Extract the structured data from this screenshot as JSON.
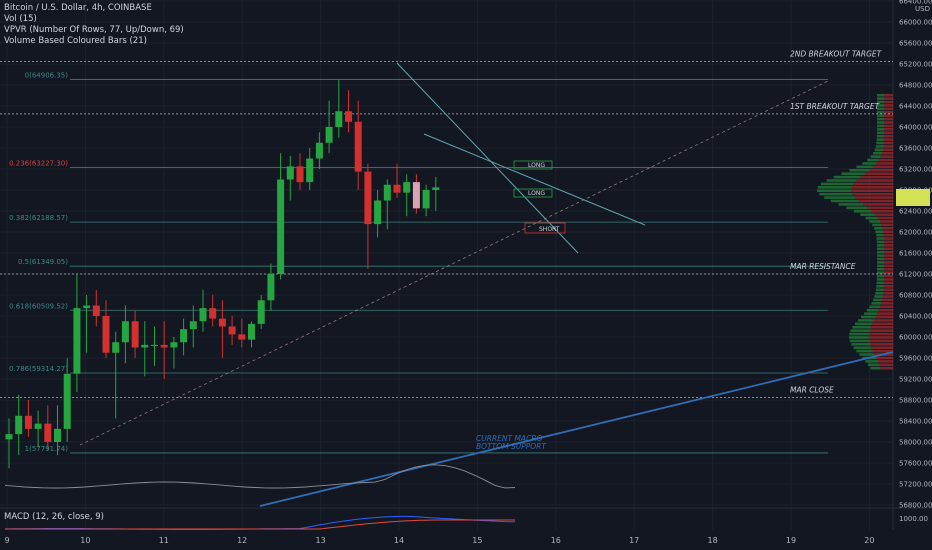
{
  "legend": {
    "symbol": "Bitcoin / U.S. Dollar, 4h, COINBASE",
    "vol": "Vol (15)",
    "vpvr": "VPVR (Number Of Rows, 77, Up/Down, 69)",
    "vbcb": "Volume Based Coloured Bars (21)",
    "macd": "MACD (12, 26, close, 9)"
  },
  "colors": {
    "background": "#131722",
    "up": "#26a641",
    "down": "#d3302f",
    "fib": "#3b8a86",
    "fib_red": "#d1473f",
    "trend_blue": "#2f6db5",
    "line_teal": "#5fa6ad",
    "dashed": "#b0b4bd",
    "price_tag": "#d4e157"
  },
  "chart_data": {
    "type": "candlestick",
    "currency": "USD",
    "y_axis": {
      "ylim": [
        56400,
        66500
      ],
      "tick_labels": [
        "66400.00",
        "66000.00",
        "65600.00",
        "65200.00",
        "64800.00",
        "64400.00",
        "64000.00",
        "63600.00",
        "63200.00",
        "62800.00",
        "62400.00",
        "62000.00",
        "61600.00",
        "61200.00",
        "60800.00",
        "60400.00",
        "60000.00",
        "59600.00",
        "59200.00",
        "58800.00",
        "58400.00",
        "58000.00",
        "57600.00",
        "57200.00",
        "56800.00"
      ],
      "macd_tick": "1000.00"
    },
    "x_axis": {
      "tick_labels": [
        "9",
        "10",
        "11",
        "12",
        "13",
        "14",
        "15",
        "16",
        "17",
        "18",
        "19",
        "20"
      ]
    },
    "candles": [
      {
        "o": 58050,
        "h": 58450,
        "l": 57500,
        "c": 58150
      },
      {
        "o": 58150,
        "h": 58900,
        "l": 57750,
        "c": 58500
      },
      {
        "o": 58500,
        "h": 58800,
        "l": 58100,
        "c": 58250
      },
      {
        "o": 58250,
        "h": 58600,
        "l": 57900,
        "c": 58350
      },
      {
        "o": 58350,
        "h": 58700,
        "l": 57850,
        "c": 58000
      },
      {
        "o": 58000,
        "h": 58700,
        "l": 57750,
        "c": 58250
      },
      {
        "o": 58250,
        "h": 59600,
        "l": 58000,
        "c": 59300
      },
      {
        "o": 59300,
        "h": 61200,
        "l": 58950,
        "c": 60550
      },
      {
        "o": 60550,
        "h": 60800,
        "l": 59700,
        "c": 60600
      },
      {
        "o": 60600,
        "h": 60900,
        "l": 60200,
        "c": 60400
      },
      {
        "o": 60400,
        "h": 60700,
        "l": 59600,
        "c": 59700
      },
      {
        "o": 59700,
        "h": 60100,
        "l": 58450,
        "c": 59900
      },
      {
        "o": 59900,
        "h": 60600,
        "l": 59500,
        "c": 60300
      },
      {
        "o": 60300,
        "h": 60500,
        "l": 59600,
        "c": 59800
      },
      {
        "o": 59800,
        "h": 60300,
        "l": 59250,
        "c": 59850
      },
      {
        "o": 59850,
        "h": 60200,
        "l": 59450,
        "c": 59850
      },
      {
        "o": 59850,
        "h": 60300,
        "l": 59200,
        "c": 59800
      },
      {
        "o": 59800,
        "h": 60000,
        "l": 59400,
        "c": 59900
      },
      {
        "o": 59900,
        "h": 60350,
        "l": 59650,
        "c": 60150
      },
      {
        "o": 60150,
        "h": 60600,
        "l": 59800,
        "c": 60300
      },
      {
        "o": 60300,
        "h": 60900,
        "l": 60100,
        "c": 60550
      },
      {
        "o": 60550,
        "h": 60800,
        "l": 60200,
        "c": 60350
      },
      {
        "o": 60350,
        "h": 60700,
        "l": 59600,
        "c": 60200
      },
      {
        "o": 60200,
        "h": 60400,
        "l": 59850,
        "c": 60050
      },
      {
        "o": 60050,
        "h": 60350,
        "l": 59800,
        "c": 59950
      },
      {
        "o": 59950,
        "h": 60300,
        "l": 59800,
        "c": 60250
      },
      {
        "o": 60250,
        "h": 60800,
        "l": 60150,
        "c": 60700
      },
      {
        "o": 60700,
        "h": 61400,
        "l": 60500,
        "c": 61200
      },
      {
        "o": 61200,
        "h": 63500,
        "l": 61100,
        "c": 63000
      },
      {
        "o": 63000,
        "h": 63450,
        "l": 62600,
        "c": 63250
      },
      {
        "o": 63250,
        "h": 63500,
        "l": 62800,
        "c": 62950
      },
      {
        "o": 62950,
        "h": 63600,
        "l": 62800,
        "c": 63400
      },
      {
        "o": 63400,
        "h": 63900,
        "l": 63200,
        "c": 63700
      },
      {
        "o": 63700,
        "h": 64500,
        "l": 63500,
        "c": 64000
      },
      {
        "o": 64000,
        "h": 64900,
        "l": 63800,
        "c": 64300
      },
      {
        "o": 64300,
        "h": 64700,
        "l": 63900,
        "c": 64100
      },
      {
        "o": 64100,
        "h": 64500,
        "l": 62800,
        "c": 63150
      },
      {
        "o": 63150,
        "h": 63300,
        "l": 61300,
        "c": 62150
      },
      {
        "o": 62150,
        "h": 62800,
        "l": 61900,
        "c": 62600
      },
      {
        "o": 62600,
        "h": 63000,
        "l": 62050,
        "c": 62900
      },
      {
        "o": 62900,
        "h": 63300,
        "l": 62650,
        "c": 62750
      },
      {
        "o": 62750,
        "h": 63100,
        "l": 62300,
        "c": 62950
      },
      {
        "o": 62950,
        "h": 63100,
        "l": 62350,
        "c": 62450
      },
      {
        "o": 62450,
        "h": 62900,
        "l": 62300,
        "c": 62800
      },
      {
        "o": 62800,
        "h": 63050,
        "l": 62400,
        "c": 62850
      }
    ],
    "fib_levels": [
      {
        "label": "0(64906.35)",
        "price": 64906.35
      },
      {
        "label": "0.236(63227.30)",
        "price": 63227.3
      },
      {
        "label": "0.382(62188.57)",
        "price": 62188.57
      },
      {
        "label": "0.5(61349.05)",
        "price": 61349.05
      },
      {
        "label": "0.618(60509.52)",
        "price": 60509.52
      },
      {
        "label": "0.786(59314.27)",
        "price": 59314.27
      },
      {
        "label": "1(57791.74)",
        "price": 57791.74
      }
    ],
    "horizontal_levels": [
      {
        "label": "2ND BREAKOUT TARGET",
        "price": 65250
      },
      {
        "label": "1ST BREAKOUT TARGET",
        "price": 64250
      },
      {
        "label": "MAR RESISTANCE",
        "price": 61200
      },
      {
        "label": "MAR CLOSE",
        "price": 58850
      }
    ],
    "annotations": {
      "long_1": "LONG",
      "long_2": "LONG",
      "short": "SHORT",
      "macro_1": "CURRENT MACRO",
      "macro_2": "BOTTOM SUPPORT"
    }
  }
}
